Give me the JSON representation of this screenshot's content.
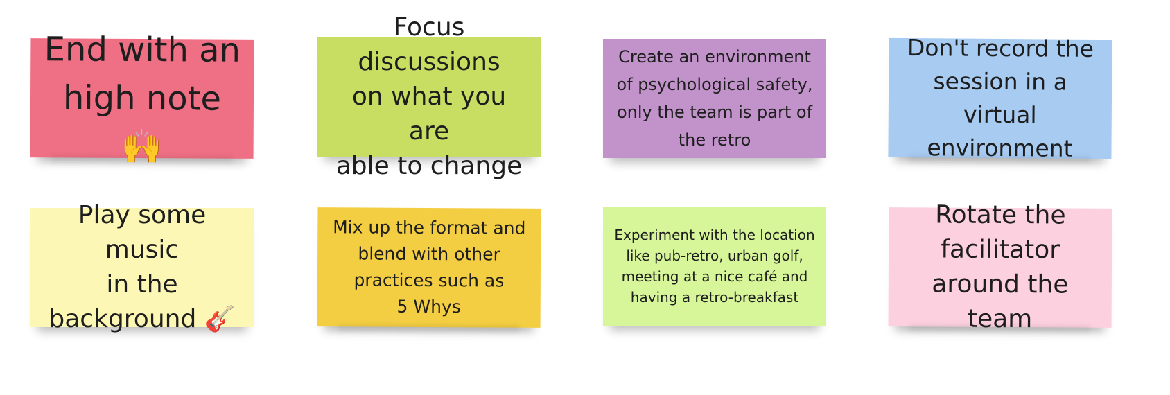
{
  "notes": [
    {
      "text": "End with an\nhigh note",
      "emoji": "🙌",
      "color": "#ef6f84"
    },
    {
      "text": "Focus discussions\non what you are\nable to change",
      "color": "#c8de62"
    },
    {
      "text": "Create an environment\nof psychological safety,\nonly the team is part of\nthe retro",
      "color": "#c292cb"
    },
    {
      "text": "Don't record the\nsession in a virtual\nenvironment",
      "color": "#a8cbf2"
    },
    {
      "text": "Play some music\nin the\nbackground",
      "emoji": "🎸",
      "color": "#fdf7b5"
    },
    {
      "text": "Mix up the format and\nblend with other\npractices such as\n5 Whys",
      "color": "#f4ce42"
    },
    {
      "text": "Experiment with the location\nlike pub-retro, urban golf,\nmeeting at a nice café and\nhaving a retro-breakfast",
      "color": "#d7f699"
    },
    {
      "text": "Rotate the\nfacilitator\naround the team",
      "color": "#fdd0e0"
    }
  ]
}
